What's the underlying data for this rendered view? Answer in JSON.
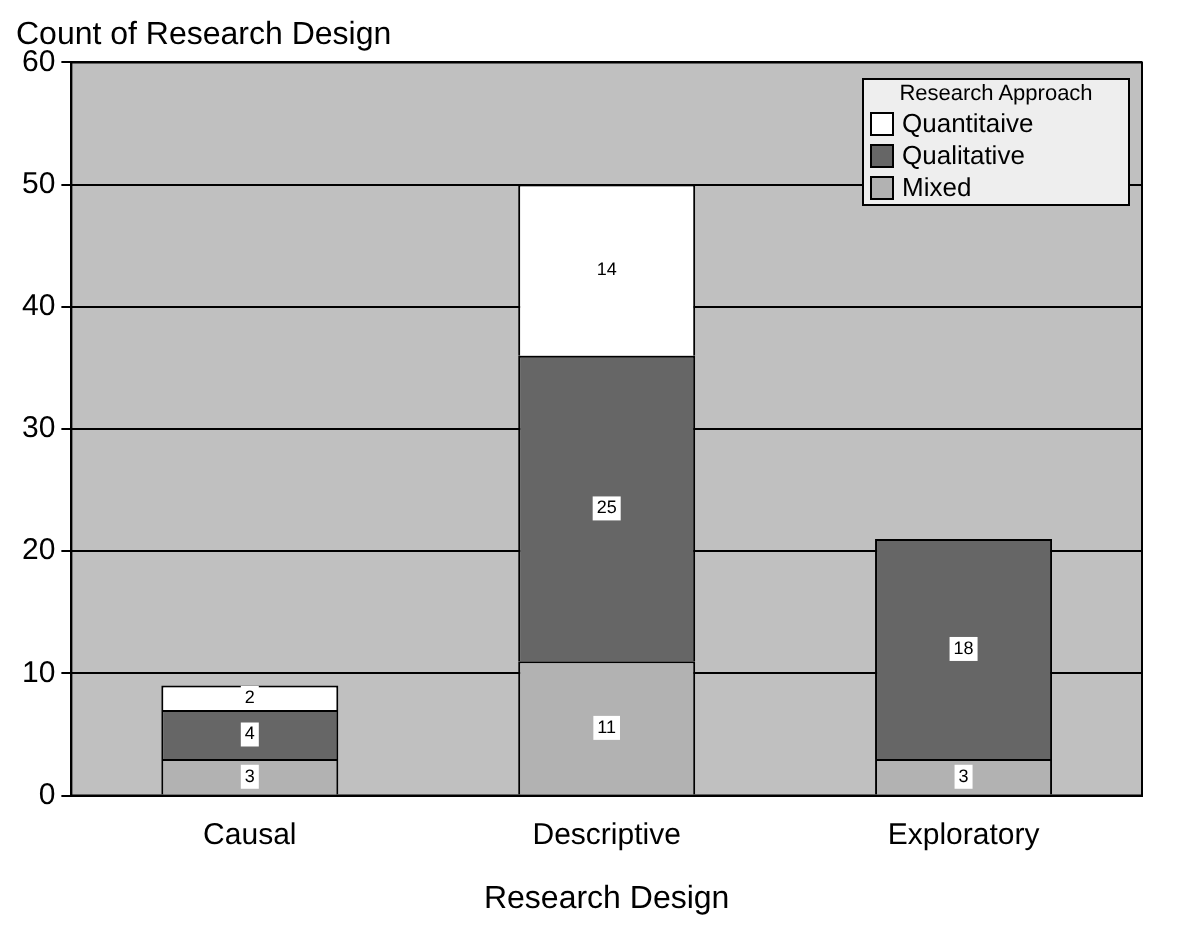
{
  "chart_data": {
    "type": "bar",
    "title": "Count of Research Design",
    "xlabel": "Research Design",
    "legend_title": "Research Approach",
    "categories": [
      "Causal",
      "Descriptive",
      "Exploratory"
    ],
    "series": [
      {
        "name": "Mixed",
        "color": "#b2b2b2",
        "values": [
          3,
          11,
          3
        ]
      },
      {
        "name": "Qualitative",
        "color": "#666666",
        "values": [
          4,
          25,
          18
        ]
      },
      {
        "name": "Quantitaive",
        "color": "#ffffff",
        "values": [
          2,
          14,
          null
        ]
      }
    ],
    "stacked": true,
    "ylim": [
      0,
      60
    ],
    "yticks": [
      0,
      10,
      20,
      30,
      40,
      50,
      60
    ],
    "grid": "y",
    "legend": "top right",
    "data_labels": true
  }
}
